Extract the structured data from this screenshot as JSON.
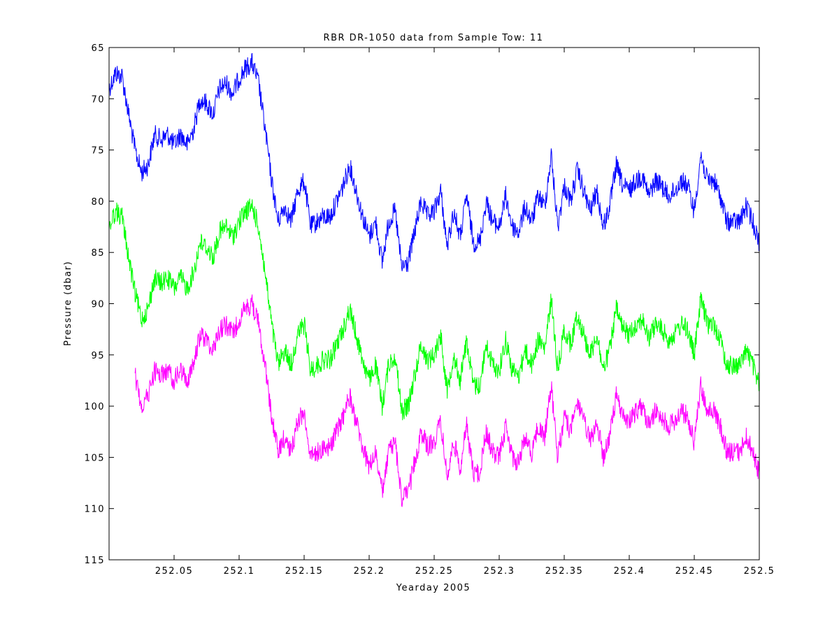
{
  "chart_data": {
    "type": "line",
    "title": "RBR DR-1050 data from Sample Tow: 11",
    "xlabel": "Yearday 2005",
    "ylabel": "Pressure (dbar)",
    "xlim": [
      252.0,
      252.5
    ],
    "ylim": [
      65,
      115
    ],
    "y_reversed": true,
    "grid": false,
    "xticks": [
      252.05,
      252.1,
      252.15,
      252.2,
      252.25,
      252.3,
      252.35,
      252.4,
      252.45,
      252.5
    ],
    "xtick_labels": [
      "252.05",
      "252.1",
      "252.15",
      "252.2",
      "252.25",
      "252.3",
      "252.35",
      "252.4",
      "252.45",
      "252.5"
    ],
    "yticks": [
      65,
      70,
      75,
      80,
      85,
      90,
      95,
      100,
      105,
      110,
      115
    ],
    "ytick_labels": [
      "65",
      "70",
      "75",
      "80",
      "85",
      "90",
      "95",
      "100",
      "105",
      "110",
      "115"
    ],
    "noise_band": 1.0,
    "series": [
      {
        "color": "#0000ff",
        "x": [
          252.0,
          252.005,
          252.01,
          252.015,
          252.02,
          252.025,
          252.03,
          252.035,
          252.04,
          252.045,
          252.05,
          252.055,
          252.06,
          252.065,
          252.07,
          252.075,
          252.08,
          252.085,
          252.09,
          252.095,
          252.1,
          252.105,
          252.11,
          252.115,
          252.12,
          252.125,
          252.13,
          252.135,
          252.14,
          252.145,
          252.15,
          252.155,
          252.16,
          252.165,
          252.17,
          252.175,
          252.18,
          252.185,
          252.19,
          252.195,
          252.2,
          252.205,
          252.21,
          252.215,
          252.22,
          252.225,
          252.23,
          252.235,
          252.24,
          252.245,
          252.25,
          252.255,
          252.26,
          252.265,
          252.27,
          252.275,
          252.28,
          252.285,
          252.29,
          252.295,
          252.3,
          252.305,
          252.31,
          252.315,
          252.32,
          252.325,
          252.33,
          252.335,
          252.34,
          252.345,
          252.35,
          252.355,
          252.36,
          252.365,
          252.37,
          252.375,
          252.38,
          252.385,
          252.39,
          252.395,
          252.4,
          252.405,
          252.41,
          252.415,
          252.42,
          252.425,
          252.43,
          252.435,
          252.44,
          252.445,
          252.45,
          252.455,
          252.46,
          252.465,
          252.47,
          252.475,
          252.48,
          252.485,
          252.49,
          252.495,
          252.5
        ],
        "y": [
          69.0,
          67.5,
          67.8,
          71.5,
          75.0,
          77.2,
          76.5,
          73.5,
          74.0,
          73.5,
          74.5,
          73.5,
          74.5,
          73.0,
          70.0,
          70.5,
          71.5,
          69.0,
          68.5,
          69.5,
          68.0,
          67.0,
          66.5,
          68.5,
          73.0,
          78.0,
          82.0,
          80.5,
          82.0,
          79.0,
          78.0,
          82.5,
          82.0,
          81.5,
          81.5,
          80.0,
          78.5,
          76.5,
          79.0,
          81.5,
          83.5,
          82.0,
          86.0,
          82.0,
          81.0,
          86.5,
          86.0,
          83.0,
          80.0,
          81.5,
          81.0,
          79.0,
          84.5,
          81.0,
          83.5,
          79.5,
          84.0,
          84.0,
          80.0,
          82.0,
          82.5,
          79.5,
          82.5,
          83.0,
          80.5,
          82.0,
          79.5,
          80.5,
          75.5,
          82.5,
          78.5,
          80.0,
          77.0,
          79.0,
          81.0,
          79.0,
          82.5,
          80.5,
          76.5,
          78.5,
          79.0,
          78.0,
          77.5,
          79.5,
          78.0,
          78.5,
          79.5,
          79.0,
          78.0,
          78.5,
          81.0,
          75.5,
          78.0,
          78.0,
          79.5,
          82.0,
          82.0,
          82.0,
          80.5,
          82.0,
          84.0
        ]
      },
      {
        "color": "#00ff00",
        "x": [
          252.0,
          252.005,
          252.01,
          252.015,
          252.02,
          252.025,
          252.03,
          252.035,
          252.04,
          252.045,
          252.05,
          252.055,
          252.06,
          252.065,
          252.07,
          252.075,
          252.08,
          252.085,
          252.09,
          252.095,
          252.1,
          252.105,
          252.11,
          252.115,
          252.12,
          252.125,
          252.13,
          252.135,
          252.14,
          252.145,
          252.15,
          252.155,
          252.16,
          252.165,
          252.17,
          252.175,
          252.18,
          252.185,
          252.19,
          252.195,
          252.2,
          252.205,
          252.21,
          252.215,
          252.22,
          252.225,
          252.23,
          252.235,
          252.24,
          252.245,
          252.25,
          252.255,
          252.26,
          252.265,
          252.27,
          252.275,
          252.28,
          252.285,
          252.29,
          252.295,
          252.3,
          252.305,
          252.31,
          252.315,
          252.32,
          252.325,
          252.33,
          252.335,
          252.34,
          252.345,
          252.35,
          252.355,
          252.36,
          252.365,
          252.37,
          252.375,
          252.38,
          252.385,
          252.39,
          252.395,
          252.4,
          252.405,
          252.41,
          252.415,
          252.42,
          252.425,
          252.43,
          252.435,
          252.44,
          252.445,
          252.45,
          252.455,
          252.46,
          252.465,
          252.47,
          252.475,
          252.48,
          252.485,
          252.49,
          252.495,
          252.5
        ],
        "y": [
          82.5,
          81.0,
          81.5,
          85.5,
          89.0,
          91.5,
          90.5,
          87.5,
          88.0,
          87.5,
          88.5,
          87.5,
          88.5,
          87.0,
          84.0,
          84.5,
          85.5,
          83.0,
          82.5,
          83.5,
          82.0,
          81.0,
          80.5,
          82.5,
          87.0,
          92.0,
          96.0,
          94.5,
          96.0,
          93.0,
          92.0,
          96.5,
          96.0,
          95.5,
          95.5,
          94.0,
          92.5,
          90.5,
          93.0,
          95.5,
          97.5,
          96.0,
          100.0,
          96.0,
          95.0,
          100.5,
          100.0,
          97.0,
          94.0,
          95.5,
          95.0,
          93.0,
          98.5,
          95.0,
          97.5,
          93.5,
          98.0,
          98.0,
          94.0,
          96.0,
          96.5,
          93.5,
          96.5,
          97.0,
          94.5,
          96.0,
          93.5,
          94.5,
          89.5,
          96.5,
          92.5,
          94.0,
          91.0,
          93.0,
          95.0,
          93.0,
          96.5,
          94.5,
          90.5,
          92.5,
          93.0,
          92.0,
          91.5,
          93.5,
          92.0,
          92.5,
          93.5,
          93.0,
          92.0,
          92.5,
          95.0,
          89.5,
          92.0,
          92.0,
          93.5,
          96.0,
          96.0,
          96.0,
          94.5,
          96.0,
          98.0
        ]
      },
      {
        "color": "#ff00ff",
        "x": [
          252.02,
          252.025,
          252.03,
          252.035,
          252.04,
          252.045,
          252.05,
          252.055,
          252.06,
          252.065,
          252.07,
          252.075,
          252.08,
          252.085,
          252.09,
          252.095,
          252.1,
          252.105,
          252.11,
          252.115,
          252.12,
          252.125,
          252.13,
          252.135,
          252.14,
          252.145,
          252.15,
          252.155,
          252.16,
          252.165,
          252.17,
          252.175,
          252.18,
          252.185,
          252.19,
          252.195,
          252.2,
          252.205,
          252.21,
          252.215,
          252.22,
          252.225,
          252.23,
          252.235,
          252.24,
          252.245,
          252.25,
          252.255,
          252.26,
          252.265,
          252.27,
          252.275,
          252.28,
          252.285,
          252.29,
          252.295,
          252.3,
          252.305,
          252.31,
          252.315,
          252.32,
          252.325,
          252.33,
          252.335,
          252.34,
          252.345,
          252.35,
          252.355,
          252.36,
          252.365,
          252.37,
          252.375,
          252.38,
          252.385,
          252.39,
          252.395,
          252.4,
          252.405,
          252.41,
          252.415,
          252.42,
          252.425,
          252.43,
          252.435,
          252.44,
          252.445,
          252.45,
          252.455,
          252.46,
          252.465,
          252.47,
          252.475,
          252.48,
          252.485,
          252.49,
          252.495,
          252.5
        ],
        "y": [
          97.0,
          100.0,
          99.0,
          96.5,
          97.0,
          96.5,
          97.5,
          96.5,
          97.5,
          96.0,
          93.0,
          93.5,
          94.5,
          92.5,
          92.0,
          93.0,
          91.5,
          90.5,
          90.0,
          92.0,
          96.0,
          101.0,
          104.5,
          103.0,
          104.5,
          101.5,
          100.5,
          105.0,
          104.5,
          104.0,
          104.0,
          102.5,
          101.0,
          99.0,
          101.5,
          104.0,
          106.0,
          104.5,
          108.5,
          104.5,
          103.5,
          109.0,
          108.5,
          105.5,
          102.5,
          104.0,
          103.5,
          101.5,
          107.0,
          103.5,
          106.0,
          102.0,
          106.5,
          106.5,
          102.5,
          104.5,
          105.0,
          102.0,
          105.0,
          105.5,
          103.0,
          104.5,
          102.0,
          103.0,
          98.0,
          105.0,
          101.0,
          102.5,
          99.5,
          101.5,
          103.5,
          101.5,
          105.0,
          103.0,
          99.0,
          101.0,
          101.5,
          100.5,
          100.0,
          102.0,
          100.5,
          101.0,
          102.0,
          101.5,
          100.5,
          101.0,
          103.5,
          98.0,
          100.5,
          100.5,
          102.0,
          104.5,
          104.5,
          104.5,
          103.0,
          104.5,
          106.5
        ]
      }
    ]
  }
}
